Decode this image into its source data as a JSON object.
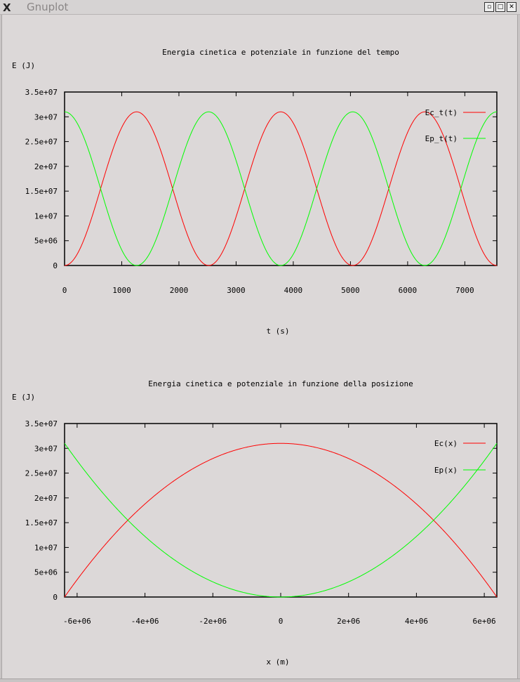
{
  "window": {
    "title": "Gnuplot",
    "logo": "X",
    "buttons": [
      "minimize",
      "maximize",
      "close"
    ]
  },
  "chart_data": [
    {
      "type": "line",
      "title": "Energia cinetica e potenziale in funzione del tempo",
      "ylabel": "E (J)",
      "xlabel": "t (s)",
      "xlim": [
        0,
        7560
      ],
      "ylim": [
        0,
        35000000
      ],
      "xticks": [
        0,
        1000,
        2000,
        3000,
        4000,
        5000,
        6000,
        7000
      ],
      "xtick_labels": [
        "0",
        "1000",
        "2000",
        "3000",
        "4000",
        "5000",
        "6000",
        "7000"
      ],
      "yticks": [
        0,
        5000000,
        10000000,
        15000000,
        20000000,
        25000000,
        30000000,
        35000000
      ],
      "ytick_labels": [
        "0",
        "5e+06",
        "1e+07",
        "1.5e+07",
        "2e+07",
        "2.5e+07",
        "3e+07",
        "3.5e+07"
      ],
      "legend_position": "top-right",
      "amplitude": 31000000,
      "half_period": 1260,
      "series": [
        {
          "name": "Ec_t(t)",
          "color": "#ff0000",
          "kind": "sin2"
        },
        {
          "name": "Ep_t(t)",
          "color": "#00ff00",
          "kind": "cos2"
        }
      ]
    },
    {
      "type": "line",
      "title": "Energia cinetica e potenziale in funzione della posizione",
      "ylabel": "E (J)",
      "xlabel": "x (m)",
      "xlim": [
        -6370000,
        6370000
      ],
      "ylim": [
        0,
        35000000
      ],
      "xticks": [
        -6000000,
        -4000000,
        -2000000,
        0,
        2000000,
        4000000,
        6000000
      ],
      "xtick_labels": [
        "-6e+06",
        "-4e+06",
        "-2e+06",
        "0",
        "2e+06",
        "4e+06",
        "6e+06"
      ],
      "yticks": [
        0,
        5000000,
        10000000,
        15000000,
        20000000,
        25000000,
        30000000,
        35000000
      ],
      "ytick_labels": [
        "0",
        "5e+06",
        "1e+07",
        "1.5e+07",
        "2e+07",
        "2.5e+07",
        "3e+07",
        "3.5e+07"
      ],
      "legend_position": "top-right",
      "amplitude": 31000000,
      "range": 6370000,
      "series": [
        {
          "name": "Ec(x)",
          "color": "#ff0000",
          "kind": "kinetic"
        },
        {
          "name": "Ep(x)",
          "color": "#00ff00",
          "kind": "potential"
        }
      ]
    }
  ]
}
